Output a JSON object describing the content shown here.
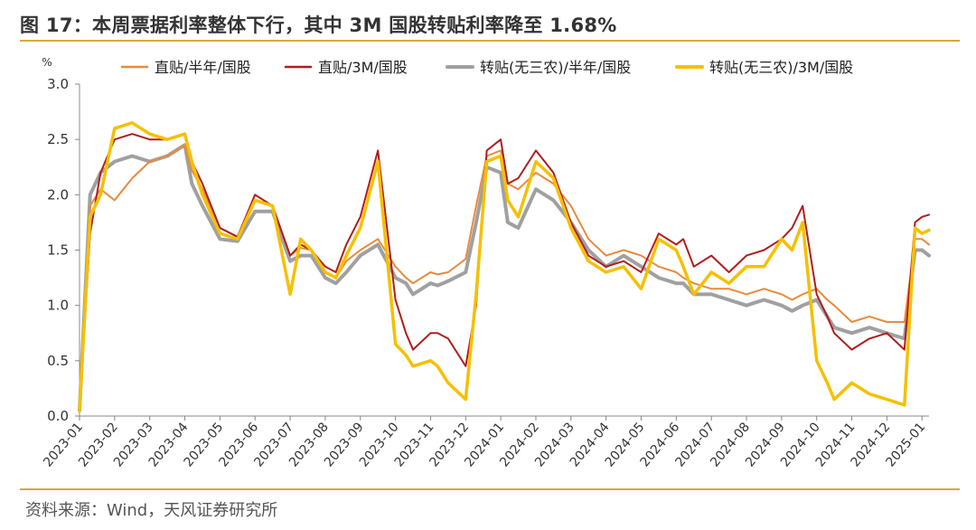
{
  "title": "图 17：本周票据利率整体下行，其中 3M 国股转贴利率降至 1.68%",
  "source": "资料来源：Wind，天风证券研究所",
  "chart_data": {
    "type": "line",
    "title": "图 17：本周票据利率整体下行，其中 3M 国股转贴利率降至 1.68%",
    "xlabel": "",
    "ylabel": "%",
    "ylim": [
      0.0,
      3.0
    ],
    "yticks": [
      "0.0",
      "0.5",
      "1.0",
      "1.5",
      "2.0",
      "2.5",
      "3.0"
    ],
    "xticks": [
      "2023-01",
      "2023-02",
      "2023-03",
      "2023-04",
      "2023-05",
      "2023-06",
      "2023-07",
      "2023-08",
      "2023-09",
      "2023-10",
      "2023-11",
      "2023-12",
      "2024-01",
      "2024-02",
      "2024-03",
      "2024-04",
      "2024-05",
      "2024-06",
      "2024-07",
      "2024-08",
      "2024-09",
      "2024-10",
      "2024-11",
      "2024-12",
      "2025-01"
    ],
    "x": [
      0,
      0.3,
      0.6,
      1,
      1.5,
      2,
      2.5,
      3,
      3.2,
      3.5,
      4,
      4.5,
      5,
      5.5,
      6,
      6.3,
      6.6,
      7,
      7.3,
      7.6,
      8,
      8.5,
      9,
      9.3,
      9.5,
      10,
      10.2,
      10.5,
      11,
      11.3,
      11.6,
      12,
      12.2,
      12.5,
      13,
      13.5,
      14,
      14.5,
      15,
      15.5,
      16,
      16.5,
      17,
      17.2,
      17.5,
      18,
      18.5,
      19,
      19.5,
      20,
      20.3,
      20.6,
      21,
      21.3,
      21.5,
      22,
      22.5,
      23,
      23.5,
      23.8,
      24,
      24.2
    ],
    "series": [
      {
        "name": "直贴/半年/国股",
        "color": "#ea8a3c",
        "values": [
          0.05,
          1.9,
          2.05,
          1.95,
          2.15,
          2.3,
          2.35,
          2.45,
          2.22,
          2.05,
          1.7,
          1.62,
          1.95,
          1.9,
          1.45,
          1.52,
          1.5,
          1.3,
          1.25,
          1.4,
          1.5,
          1.6,
          1.35,
          1.25,
          1.2,
          1.3,
          1.28,
          1.3,
          1.42,
          1.9,
          2.35,
          2.4,
          2.1,
          2.05,
          2.2,
          2.1,
          1.9,
          1.6,
          1.45,
          1.5,
          1.45,
          1.35,
          1.3,
          1.25,
          1.2,
          1.15,
          1.15,
          1.1,
          1.15,
          1.1,
          1.05,
          1.1,
          1.15,
          1.05,
          1.0,
          0.85,
          0.9,
          0.85,
          0.85,
          1.6,
          1.6,
          1.55
        ]
      },
      {
        "name": "直贴/3M/国股",
        "color": "#b01d1d",
        "values": [
          0.05,
          1.65,
          2.2,
          2.5,
          2.55,
          2.5,
          2.5,
          2.55,
          2.3,
          2.1,
          1.7,
          1.62,
          2.0,
          1.9,
          1.45,
          1.55,
          1.5,
          1.35,
          1.3,
          1.55,
          1.8,
          2.4,
          1.05,
          0.75,
          0.6,
          0.75,
          0.75,
          0.7,
          0.45,
          1.0,
          2.4,
          2.5,
          2.1,
          2.15,
          2.4,
          2.2,
          1.75,
          1.45,
          1.35,
          1.4,
          1.3,
          1.65,
          1.55,
          1.6,
          1.35,
          1.45,
          1.3,
          1.45,
          1.5,
          1.6,
          1.7,
          1.9,
          1.1,
          0.9,
          0.75,
          0.6,
          0.7,
          0.75,
          0.6,
          1.75,
          1.8,
          1.82
        ]
      },
      {
        "name": "转贴(无三农)/半年/国股",
        "color": "#a0a0a0",
        "values": [
          0.05,
          2.0,
          2.2,
          2.3,
          2.35,
          2.3,
          2.35,
          2.45,
          2.1,
          1.9,
          1.6,
          1.58,
          1.85,
          1.85,
          1.4,
          1.45,
          1.45,
          1.25,
          1.2,
          1.3,
          1.45,
          1.55,
          1.25,
          1.2,
          1.1,
          1.2,
          1.18,
          1.22,
          1.3,
          1.75,
          2.25,
          2.2,
          1.75,
          1.7,
          2.05,
          1.95,
          1.75,
          1.5,
          1.35,
          1.45,
          1.35,
          1.25,
          1.2,
          1.2,
          1.1,
          1.1,
          1.05,
          1.0,
          1.05,
          1.0,
          0.95,
          1.0,
          1.05,
          0.9,
          0.8,
          0.75,
          0.8,
          0.75,
          0.7,
          1.5,
          1.5,
          1.45
        ]
      },
      {
        "name": "转贴(无三农)/3M/国股",
        "color": "#f5c000",
        "values": [
          0.05,
          1.8,
          2.0,
          2.6,
          2.65,
          2.55,
          2.5,
          2.55,
          2.3,
          2.0,
          1.65,
          1.6,
          1.95,
          1.9,
          1.1,
          1.6,
          1.5,
          1.3,
          1.25,
          1.45,
          1.7,
          2.3,
          0.65,
          0.55,
          0.45,
          0.5,
          0.45,
          0.3,
          0.15,
          1.1,
          2.3,
          2.35,
          1.95,
          1.8,
          2.3,
          2.15,
          1.7,
          1.4,
          1.3,
          1.35,
          1.15,
          1.6,
          1.5,
          1.35,
          1.1,
          1.3,
          1.2,
          1.35,
          1.35,
          1.6,
          1.5,
          1.75,
          0.5,
          0.3,
          0.15,
          0.3,
          0.2,
          0.15,
          0.1,
          1.7,
          1.65,
          1.68
        ]
      }
    ]
  }
}
